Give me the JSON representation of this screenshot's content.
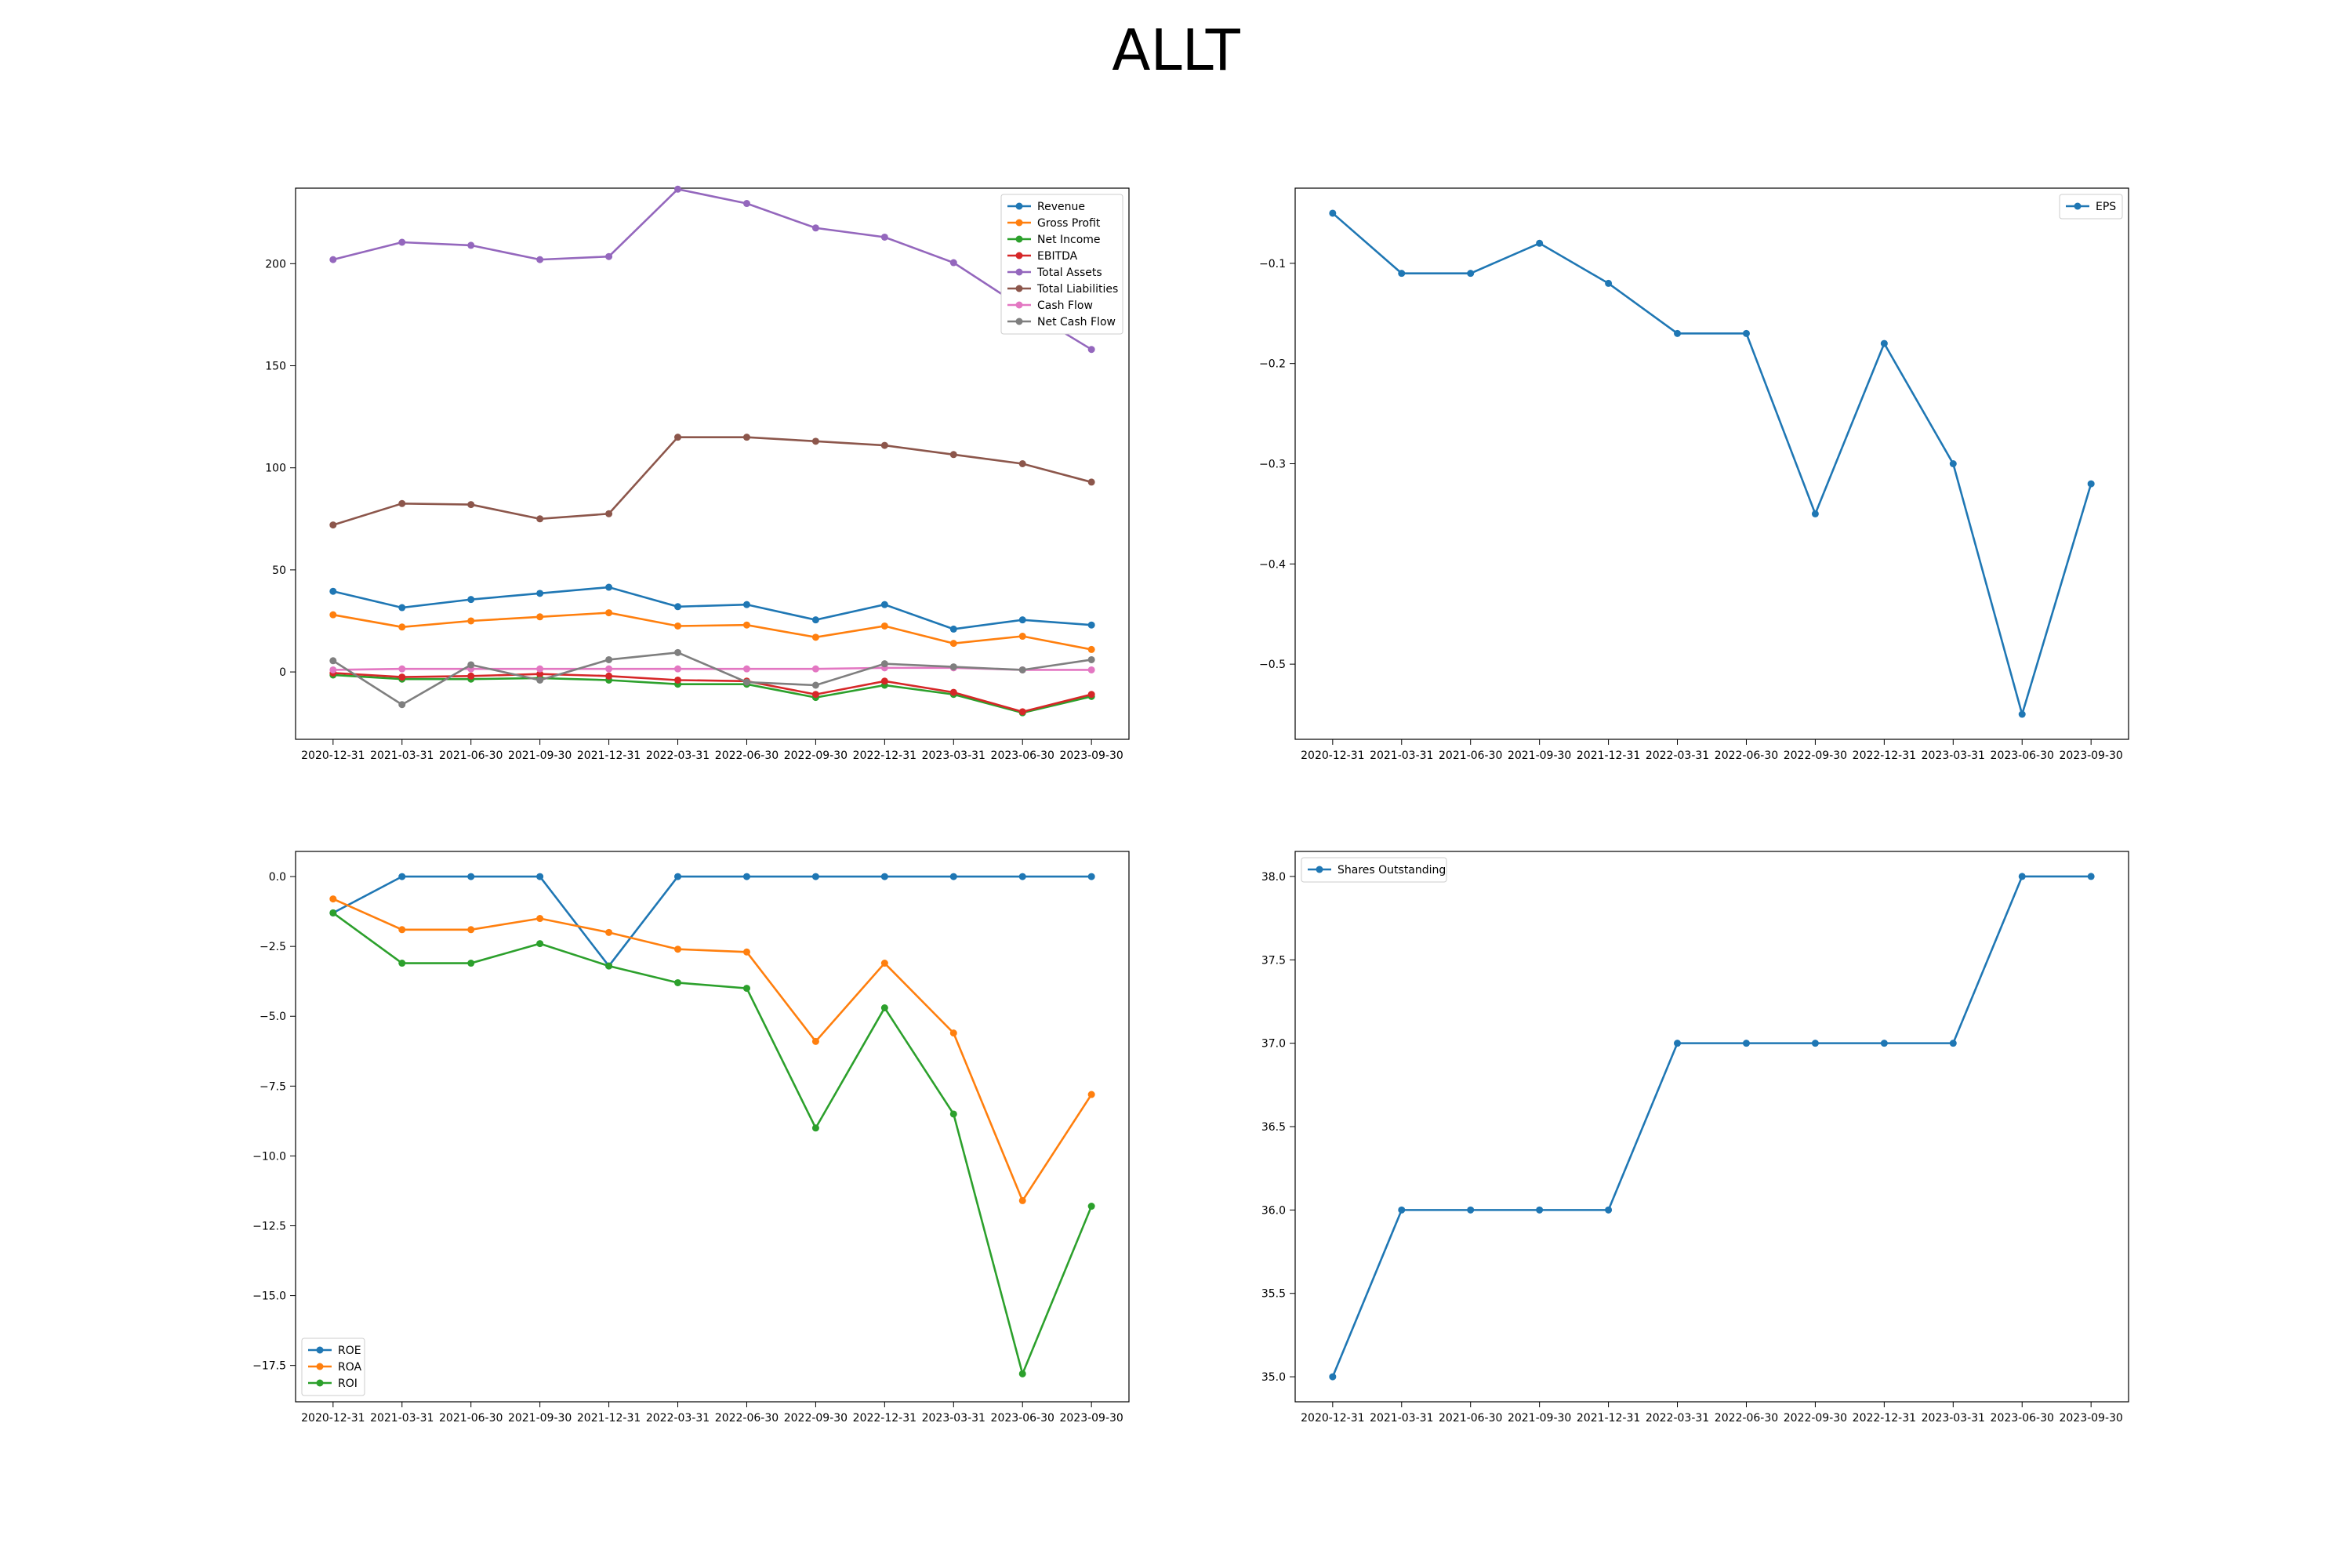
{
  "title": "ALLT",
  "chart_data": [
    {
      "type": "line",
      "x": [
        "2020-12-31",
        "2021-03-31",
        "2021-06-30",
        "2021-09-30",
        "2021-12-31",
        "2022-03-31",
        "2022-06-30",
        "2022-09-30",
        "2022-12-31",
        "2023-03-31",
        "2023-06-30",
        "2023-09-30"
      ],
      "ylim": [
        -33,
        237
      ],
      "yticks": [
        0,
        50,
        100,
        150,
        200
      ],
      "legend": "top-right",
      "series": [
        {
          "name": "Revenue",
          "color": "#1f77b4",
          "values": [
            39.5,
            31.5,
            35.5,
            38.5,
            41.5,
            32,
            33,
            25.5,
            33,
            21,
            25.5,
            23
          ]
        },
        {
          "name": "Gross Profit",
          "color": "#ff7f0e",
          "values": [
            28,
            22,
            25,
            27,
            29,
            22.5,
            23,
            17,
            22.5,
            14,
            17.5,
            11
          ]
        },
        {
          "name": "Net Income",
          "color": "#2ca02c",
          "values": [
            -1.5,
            -3.5,
            -3.5,
            -3,
            -4,
            -6,
            -6,
            -12.5,
            -6.5,
            -11,
            -20,
            -12
          ]
        },
        {
          "name": "EBITDA",
          "color": "#d62728",
          "values": [
            -0.5,
            -2.5,
            -2,
            -1,
            -2,
            -4,
            -4.5,
            -11,
            -4.5,
            -10,
            -19.5,
            -11
          ]
        },
        {
          "name": "Total Assets",
          "color": "#9467bd",
          "values": [
            202,
            210.5,
            209,
            202,
            203.5,
            236.5,
            229.5,
            217.5,
            213,
            200.5,
            178.5,
            158
          ]
        },
        {
          "name": "Total Liabilities",
          "color": "#8c564b",
          "values": [
            72,
            82.5,
            82,
            75,
            77.5,
            115,
            115,
            113,
            111,
            106.5,
            102,
            93
          ]
        },
        {
          "name": "Cash Flow",
          "color": "#e377c2",
          "values": [
            1,
            1.5,
            1.5,
            1.5,
            1.5,
            1.5,
            1.5,
            1.5,
            2,
            2,
            1,
            1
          ]
        },
        {
          "name": "Net Cash Flow",
          "color": "#7f7f7f",
          "values": [
            5.5,
            -16,
            3.5,
            -4,
            6,
            9.5,
            -5,
            -6.5,
            4,
            2.5,
            1,
            6
          ]
        }
      ]
    },
    {
      "type": "line",
      "x": [
        "2020-12-31",
        "2021-03-31",
        "2021-06-30",
        "2021-09-30",
        "2021-12-31",
        "2022-03-31",
        "2022-06-30",
        "2022-09-30",
        "2022-12-31",
        "2023-03-31",
        "2023-06-30",
        "2023-09-30"
      ],
      "ylim": [
        -0.575,
        -0.025
      ],
      "yticks": [
        -0.1,
        -0.2,
        -0.3,
        -0.4,
        -0.5
      ],
      "legend": "top-right",
      "series": [
        {
          "name": "EPS",
          "color": "#1f77b4",
          "values": [
            -0.05,
            -0.11,
            -0.11,
            -0.08,
            -0.12,
            -0.17,
            -0.17,
            -0.35,
            -0.18,
            -0.3,
            -0.55,
            -0.32
          ]
        }
      ]
    },
    {
      "type": "line",
      "x": [
        "2020-12-31",
        "2021-03-31",
        "2021-06-30",
        "2021-09-30",
        "2021-12-31",
        "2022-03-31",
        "2022-06-30",
        "2022-09-30",
        "2022-12-31",
        "2023-03-31",
        "2023-06-30",
        "2023-09-30"
      ],
      "ylim": [
        -18.8,
        0.9
      ],
      "yticks": [
        0.0,
        -2.5,
        -5.0,
        -7.5,
        -10.0,
        -12.5,
        -15.0,
        -17.5
      ],
      "legend": "bottom-left",
      "series": [
        {
          "name": "ROE",
          "color": "#1f77b4",
          "values": [
            -1.3,
            0,
            0,
            0,
            -3.2,
            0,
            0,
            0,
            0,
            0,
            0,
            0
          ]
        },
        {
          "name": "ROA",
          "color": "#ff7f0e",
          "values": [
            -0.8,
            -1.9,
            -1.9,
            -1.5,
            -2,
            -2.6,
            -2.7,
            -5.9,
            -3.1,
            -5.6,
            -11.6,
            -7.8
          ]
        },
        {
          "name": "ROI",
          "color": "#2ca02c",
          "values": [
            -1.3,
            -3.1,
            -3.1,
            -2.4,
            -3.2,
            -3.8,
            -4.0,
            -9.0,
            -4.7,
            -8.5,
            -17.8,
            -11.8
          ]
        }
      ]
    },
    {
      "type": "line",
      "x": [
        "2020-12-31",
        "2021-03-31",
        "2021-06-30",
        "2021-09-30",
        "2021-12-31",
        "2022-03-31",
        "2022-06-30",
        "2022-09-30",
        "2022-12-31",
        "2023-03-31",
        "2023-06-30",
        "2023-09-30"
      ],
      "ylim": [
        34.85,
        38.15
      ],
      "yticks": [
        38.0,
        37.5,
        37.0,
        36.5,
        36.0,
        35.5,
        35.0
      ],
      "legend": "top-left",
      "series": [
        {
          "name": "Shares Outstanding",
          "color": "#1f77b4",
          "values": [
            35,
            36,
            36,
            36,
            36,
            37,
            37,
            37,
            37,
            37,
            38,
            38
          ]
        }
      ]
    }
  ]
}
